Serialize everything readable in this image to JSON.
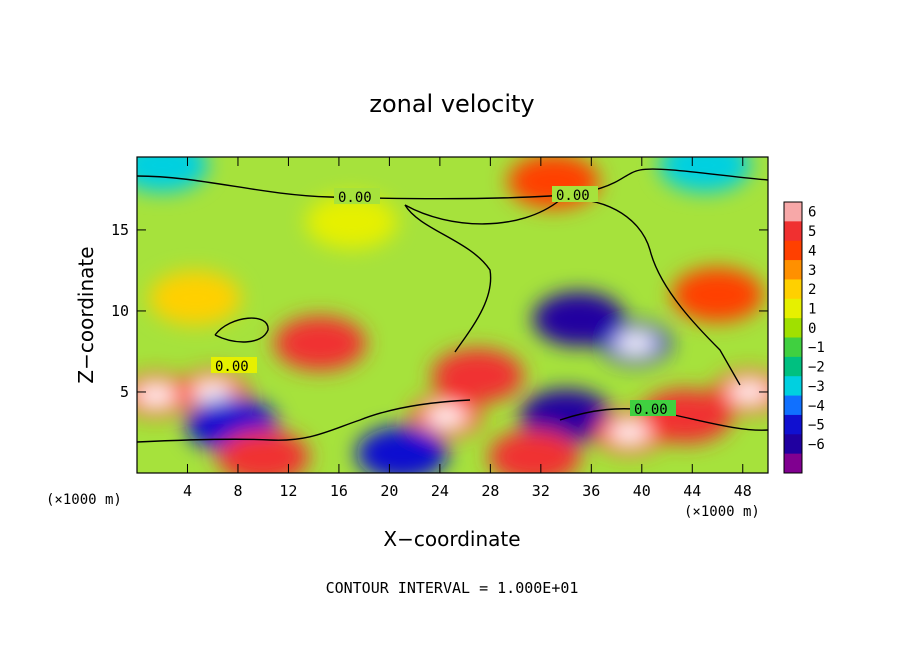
{
  "chart_data": {
    "type": "heatmap",
    "title": "zonal velocity",
    "xlabel": "X−coordinate",
    "ylabel": "Z−coordinate",
    "x_unit_left": "(×1000 m)",
    "x_unit_right": "(×1000 m)",
    "xlim": [
      0,
      50
    ],
    "ylim": [
      0,
      19.5
    ],
    "x_ticks": [
      4,
      8,
      12,
      16,
      20,
      24,
      28,
      32,
      36,
      40,
      44,
      48
    ],
    "y_ticks": [
      5,
      10,
      15
    ],
    "colorbar": {
      "ticks": [
        "6",
        "5",
        "4",
        "3",
        "2",
        "1",
        "0",
        "−1",
        "−2",
        "−3",
        "−4",
        "−5",
        "−6"
      ],
      "colors": [
        "#f7a8a8",
        "#f03030",
        "#ff4000",
        "#ff9000",
        "#ffd000",
        "#e6f000",
        "#a0e000",
        "#40d040",
        "#00c080",
        "#00d0e0",
        "#1070ff",
        "#1010d0",
        "#2000a0",
        "#800090"
      ]
    },
    "contour_labels": [
      "0.00",
      "0.00",
      "0.00",
      "0.00"
    ],
    "footnote": "CONTOUR INTERVAL = 1.000E+01",
    "features": [
      {
        "x": 4.6,
        "z": 10.8,
        "u": 2.5
      },
      {
        "x": 17.0,
        "z": 15.5,
        "u": 1.4
      },
      {
        "x": 6.0,
        "z": 5.0,
        "u": 6.5
      },
      {
        "x": 1.5,
        "z": 4.8,
        "u": 7.5
      },
      {
        "x": 14.5,
        "z": 8.0,
        "u": 5.5
      },
      {
        "x": 27.0,
        "z": 6.0,
        "u": 5.5
      },
      {
        "x": 35.0,
        "z": 9.5,
        "u": -5.5
      },
      {
        "x": 39.5,
        "z": 8.0,
        "u": -7.5
      },
      {
        "x": 34.0,
        "z": 3.5,
        "u": -6.0
      },
      {
        "x": 46.0,
        "z": 11.0,
        "u": 4.0
      },
      {
        "x": 48.5,
        "z": 5.0,
        "u": 7.0
      },
      {
        "x": 43.5,
        "z": 3.5,
        "u": 5.0
      },
      {
        "x": 39.0,
        "z": 2.5,
        "u": 6.5
      },
      {
        "x": 7.5,
        "z": 3.0,
        "u": -5.0
      },
      {
        "x": 10.0,
        "z": 1.0,
        "u": 5.0
      },
      {
        "x": 24.5,
        "z": 3.5,
        "u": 6.5
      },
      {
        "x": 31.5,
        "z": 1.0,
        "u": 5.0
      },
      {
        "x": 21.0,
        "z": 1.2,
        "u": -4.5
      },
      {
        "x": 2.0,
        "z": 19.0,
        "u": -2.5
      },
      {
        "x": 45.0,
        "z": 19.0,
        "u": -2.5
      },
      {
        "x": 33.0,
        "z": 18.0,
        "u": 4.0
      }
    ]
  }
}
